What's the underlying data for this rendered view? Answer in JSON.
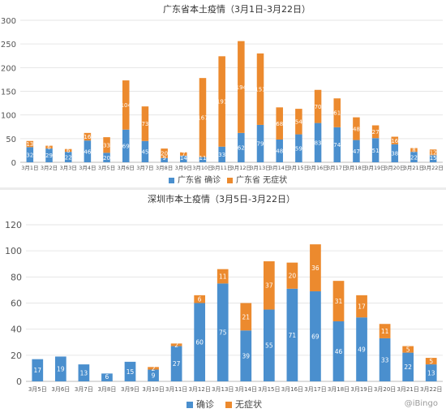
{
  "colors": {
    "confirmed": "#4a8fce",
    "asymptomatic": "#ec8a2e",
    "grid": "#e6e6e6",
    "axis": "#555555"
  },
  "watermark": "@iBingo",
  "chart_data": [
    {
      "type": "bar",
      "stacked": true,
      "title": "广东省本土疫情（3月1日-3月22日）",
      "categories": [
        "3月1日",
        "3月2日",
        "3月3日",
        "3月4日",
        "3月5日",
        "3月6日",
        "3月7日",
        "3月8日",
        "3月9日",
        "3月10日",
        "3月11日",
        "3月12日",
        "3月13日",
        "3月14日",
        "3月15日",
        "3月16日",
        "3月17日",
        "3月18日",
        "3月19日",
        "3月20日",
        "3月21日",
        "3月22日"
      ],
      "series": [
        {
          "name": "广东省 确诊",
          "values": [
            32,
            29,
            22,
            46,
            20,
            69,
            45,
            9,
            14,
            11,
            33,
            62,
            79,
            48,
            59,
            83,
            74,
            47,
            51,
            38,
            22,
            15
          ]
        },
        {
          "name": "广东省 无症状",
          "values": [
            13,
            6,
            6,
            16,
            33,
            104,
            73,
            20,
            7,
            167,
            191,
            194,
            151,
            68,
            54,
            70,
            61,
            48,
            27,
            16,
            8,
            12
          ]
        }
      ],
      "ylim": [
        0,
        300
      ],
      "yticks": [
        0,
        50,
        100,
        150,
        200,
        250,
        300
      ],
      "grid": true,
      "legend": "bottom"
    },
    {
      "type": "bar",
      "stacked": true,
      "title": "深圳市本土疫情（3月5日-3月22日）",
      "categories": [
        "3月5日",
        "3月6日",
        "3月7日",
        "3月8日",
        "3月9日",
        "3月10日",
        "3月11日",
        "3月12日",
        "3月13日",
        "3月14日",
        "3月15日",
        "3月16日",
        "3月17日",
        "3月18日",
        "3月19日",
        "3月20日",
        "3月21日",
        "3月22日"
      ],
      "series": [
        {
          "name": "确诊",
          "values": [
            17,
            19,
            13,
            6,
            15,
            9,
            27,
            60,
            75,
            39,
            55,
            71,
            69,
            46,
            49,
            33,
            22,
            13
          ]
        },
        {
          "name": "无症状",
          "values": [
            0,
            0,
            0,
            0,
            0,
            2,
            2,
            6,
            11,
            21,
            37,
            20,
            36,
            31,
            17,
            11,
            5,
            5
          ]
        }
      ],
      "ylim": [
        0,
        120
      ],
      "yticks": [
        0,
        20,
        40,
        60,
        80,
        100,
        120
      ],
      "grid": true,
      "legend": "bottom"
    }
  ]
}
